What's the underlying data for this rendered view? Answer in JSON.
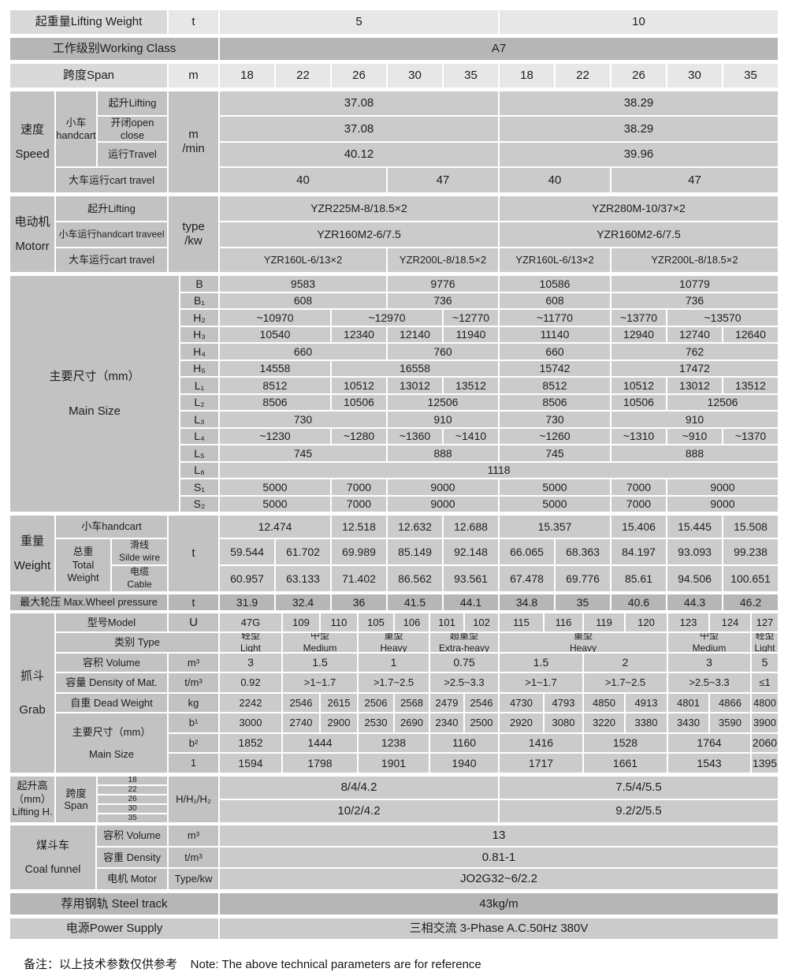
{
  "colors": {
    "light_row": "#e7e7e7",
    "dark_row": "#b6b6b6",
    "mid_row": "#cbcbcb",
    "label_cell": "#c2c2c2",
    "text": "#1d1d1d"
  },
  "header": {
    "lifting_weight": {
      "label": "起重量Lifting Weight",
      "unit": "t",
      "values": [
        "5",
        "10"
      ]
    },
    "working_class": {
      "label": "工作级别Working Class",
      "value": "A7"
    },
    "span": {
      "label": "跨度Span",
      "unit": "m",
      "values": [
        "18",
        "22",
        "26",
        "30",
        "35",
        "18",
        "22",
        "26",
        "30",
        "35"
      ]
    }
  },
  "speed": {
    "outer": "速度\nSpeed",
    "group": "小车\nhandcart",
    "unit": "m\n/min",
    "rows": [
      {
        "label": "起升Lifting",
        "values": [
          "37.08",
          "38.29"
        ]
      },
      {
        "label": "开闭open close",
        "values": [
          "37.08",
          "38.29"
        ]
      },
      {
        "label": "运行Travel",
        "values": [
          "40.12",
          "39.96"
        ]
      },
      {
        "label": "大车运行cart travel",
        "values": [
          "40",
          "47",
          "40",
          "47"
        ]
      }
    ]
  },
  "motor": {
    "outer": "电动机\nMotorr",
    "unit": "type\n/kw",
    "rows": [
      {
        "label": "起升Lifting",
        "values": [
          "YZR225M-8/18.5×2",
          "YZR280M-10/37×2"
        ]
      },
      {
        "label": "小车运行handcart traveel",
        "values": [
          "YZR160M2-6/7.5",
          "YZR160M2-6/7.5"
        ]
      },
      {
        "label": "大车运行cart travel",
        "values": [
          "YZR160L-6/13×2",
          "YZR200L-8/18.5×2",
          "YZR160L-6/13×2",
          "YZR200L-8/18.5×2"
        ]
      }
    ]
  },
  "main_size": {
    "outer": "主要尺寸（mm）\nMain Size",
    "rows": [
      {
        "label": "B",
        "values": [
          "9583",
          "9776",
          "10586",
          "10779"
        ]
      },
      {
        "label": "B₁",
        "values": [
          "608",
          "736",
          "608",
          "736"
        ]
      },
      {
        "label": "H₂",
        "values": [
          "~10970",
          "~12970",
          "~12770",
          "~11770",
          "~13770",
          "~13570"
        ]
      },
      {
        "label": "H₃",
        "values": [
          "10540",
          "12340",
          "12140",
          "11940",
          "11140",
          "12940",
          "12740",
          "12640"
        ]
      },
      {
        "label": "H₄",
        "values": [
          "660",
          "760",
          "660",
          "762"
        ]
      },
      {
        "label": "H₅",
        "values": [
          "14558",
          "16558",
          "15742",
          "17472"
        ]
      },
      {
        "label": "L₁",
        "values": [
          "8512",
          "10512",
          "13012",
          "13512",
          "8512",
          "10512",
          "13012",
          "13512"
        ]
      },
      {
        "label": "L₂",
        "values": [
          "8506",
          "10506",
          "12506",
          "8506",
          "10506",
          "12506"
        ]
      },
      {
        "label": "L₃",
        "values": [
          "730",
          "910",
          "730",
          "910"
        ]
      },
      {
        "label": "L₄",
        "values": [
          "~1230",
          "~1280",
          "~1360",
          "~1410",
          "~1260",
          "~1310",
          "~910",
          "~1370"
        ]
      },
      {
        "label": "L₅",
        "values": [
          "745",
          "888",
          "745",
          "888"
        ]
      },
      {
        "label": "L₆",
        "values": [
          "1118"
        ]
      },
      {
        "label": "S₁",
        "values": [
          "5000",
          "7000",
          "9000",
          "5000",
          "7000",
          "9000"
        ]
      },
      {
        "label": "S₂",
        "values": [
          "5000",
          "7000",
          "9000",
          "5000",
          "7000",
          "9000"
        ]
      }
    ]
  },
  "weight": {
    "outer": "重量\nWeight",
    "unit": "t",
    "handcart": {
      "label": "小车handcart",
      "values": [
        "12.474",
        "12.518",
        "12.632",
        "12.688",
        "15.357",
        "15.406",
        "15.445",
        "15.508"
      ]
    },
    "total_label": "总重\nTotal\nWeight",
    "silde_wire": {
      "label": "滑线\nSilde wire",
      "values": [
        "59.544",
        "61.702",
        "69.989",
        "85.149",
        "92.148",
        "66.065",
        "68.363",
        "84.197",
        "93.093",
        "99.238"
      ]
    },
    "cable": {
      "label": "电缆\nCable",
      "values": [
        "60.957",
        "63.133",
        "71.402",
        "86.562",
        "93.561",
        "67.478",
        "69.776",
        "85.61",
        "94.506",
        "100.651"
      ]
    }
  },
  "max_wheel": {
    "label": "最大轮压 Max.Wheel pressure",
    "unit": "t",
    "values": [
      "31.9",
      "32.4",
      "36",
      "41.5",
      "44.1",
      "34.8",
      "35",
      "40.6",
      "44.3",
      "46.2"
    ]
  },
  "grab": {
    "outer": "抓斗\nGrab",
    "model": {
      "label": "型号Model",
      "unit": "U",
      "values": [
        "47G",
        "109",
        "110",
        "105",
        "106",
        "101",
        "102",
        "115",
        "116",
        "119",
        "120",
        "123",
        "124",
        "127"
      ]
    },
    "type": {
      "label": "类别 Type",
      "values": [
        "轻型\nLight",
        "中型\nMedium",
        "重型\nHeavy",
        "超重型\nExtra-heavy",
        "重型\nHeavy",
        "中型\nMedium",
        "轻型\nLight"
      ]
    },
    "volume": {
      "label": "容积 Volume",
      "unit": "m³",
      "values": [
        "3",
        "1.5",
        "1",
        "0.75",
        "1.5",
        "2",
        "3",
        "5"
      ]
    },
    "density": {
      "label": "容量 Density of Mat.",
      "unit": "t/m³",
      "values": [
        "0.92",
        ">1~1.7",
        ">1.7~2.5",
        ">2.5~3.3",
        ">1~1.7",
        ">1.7~2.5",
        ">2.5~3.3",
        "≤1"
      ]
    },
    "dead_weight": {
      "label": "自重 Dead Weight",
      "unit": "kg",
      "values": [
        "2242",
        "2546",
        "2615",
        "2506",
        "2568",
        "2479",
        "2546",
        "4730",
        "4793",
        "4850",
        "4913",
        "4801",
        "4866",
        "4800"
      ]
    },
    "size_label": "主要尺寸（mm）\nMain Size",
    "b1": {
      "label": "b¹",
      "values": [
        "3000",
        "2740",
        "2900",
        "2530",
        "2690",
        "2340",
        "2500",
        "2920",
        "3080",
        "3220",
        "3380",
        "3430",
        "3590",
        "3900"
      ]
    },
    "b2": {
      "label": "b²",
      "values": [
        "1852",
        "1444",
        "1238",
        "1160",
        "1416",
        "1528",
        "1764",
        "2060"
      ]
    },
    "l": {
      "label": "1",
      "values": [
        "1594",
        "1798",
        "1901",
        "1940",
        "1717",
        "1661",
        "1543",
        "1395"
      ]
    }
  },
  "lifting_height": {
    "outer": "起升高\n（mm）\nLifting H.",
    "span_label": "跨度\nSpan",
    "span_values": [
      "18",
      "22",
      "26",
      "30",
      "35"
    ],
    "unit": "H/H₁/H₂",
    "rows": [
      [
        "8/4/4.2",
        "7.5/4/5.5"
      ],
      [
        "10/2/4.2",
        "9.2/2/5.5"
      ]
    ]
  },
  "coal_funnel": {
    "outer": "煤斗车\nCoal funnel",
    "rows": [
      {
        "label": "容积 Volume",
        "unit": "m³",
        "value": "13"
      },
      {
        "label": "容重 Density",
        "unit": "t/m³",
        "value": "0.81-1"
      },
      {
        "label": "电机 Motor",
        "unit": "Type/kw",
        "value": "JO2G32~6/2.2"
      }
    ]
  },
  "steel_track": {
    "label": "荐用钢轨 Steel track",
    "value": "43kg/m"
  },
  "power_supply": {
    "label": "电源Power Supply",
    "value": "三相交流 3-Phase A.C.50Hz  380V"
  },
  "note": "备注：以上技术参数仅供参考    Note: The above technical parameters are for reference"
}
